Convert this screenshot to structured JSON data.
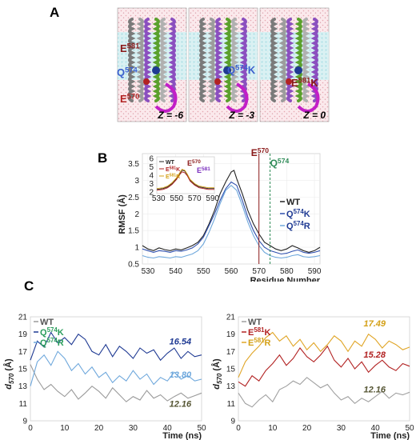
{
  "panel_a": {
    "letter": "A",
    "frames": [
      {
        "z_label": "Z = -6",
        "labels": [
          {
            "res": "E",
            "num": "581",
            "suffix": "",
            "color": "#8b1a1a"
          },
          {
            "res": "Q",
            "num": "574",
            "suffix": "",
            "color": "#3a5fcd"
          },
          {
            "res": "E",
            "num": "570",
            "suffix": "",
            "color": "#b22222"
          }
        ]
      },
      {
        "z_label": "Z = -3",
        "labels": [
          {
            "res": "Q",
            "num": "574",
            "suffix": "K",
            "color": "#3a5fcd"
          }
        ]
      },
      {
        "z_label": "Z = 0",
        "labels": [
          {
            "res": "E",
            "num": "581",
            "suffix": "K",
            "color": "#8b1a1a"
          }
        ]
      }
    ]
  },
  "panel_b": {
    "letter": "B",
    "chart_data": {
      "type": "line",
      "xlabel": "Residue Number",
      "ylabel": "RMSF (Å)",
      "xlim": [
        528,
        592
      ],
      "ylim": [
        0.5,
        3.8
      ],
      "xticks": [
        530,
        540,
        550,
        560,
        570,
        580,
        590
      ],
      "yticks": [
        0.5,
        1,
        1.5,
        2,
        2.5,
        3,
        3.5
      ],
      "markers": [
        {
          "label_res": "E",
          "label_num": "570",
          "x": 570,
          "color": "#8b1a1a"
        },
        {
          "label_res": "Q",
          "label_num": "574",
          "x": 574,
          "color": "#2e8b57"
        }
      ],
      "legend": [
        {
          "res": "WT",
          "num": "",
          "suffix": "",
          "color": "#222222"
        },
        {
          "res": "Q",
          "num": "574",
          "suffix": "K",
          "color": "#1f3a93"
        },
        {
          "res": "Q",
          "num": "574",
          "suffix": "R",
          "color": "#1f3a93"
        }
      ],
      "series": [
        {
          "name": "WT",
          "color": "#222222",
          "x": [
            528,
            530,
            532,
            534,
            536,
            538,
            540,
            542,
            544,
            546,
            548,
            550,
            552,
            554,
            556,
            558,
            560,
            561,
            562,
            564,
            566,
            568,
            570,
            572,
            574,
            576,
            578,
            580,
            582,
            584,
            586,
            588,
            590,
            592
          ],
          "y": [
            1.05,
            0.95,
            0.9,
            0.98,
            0.93,
            0.9,
            0.95,
            0.92,
            0.98,
            1.05,
            1.15,
            1.35,
            1.7,
            2.1,
            2.6,
            2.95,
            3.25,
            3.3,
            3.05,
            2.6,
            2.1,
            1.7,
            1.4,
            1.15,
            1.05,
            0.95,
            0.9,
            0.95,
            1.05,
            0.98,
            0.9,
            0.85,
            0.9,
            1.0
          ]
        },
        {
          "name": "Q574K",
          "color": "#2e4fae",
          "x": [
            528,
            530,
            532,
            534,
            536,
            538,
            540,
            542,
            544,
            546,
            548,
            550,
            552,
            554,
            556,
            558,
            560,
            562,
            564,
            566,
            568,
            570,
            572,
            574,
            576,
            578,
            580,
            582,
            584,
            586,
            588,
            590,
            592
          ],
          "y": [
            0.95,
            0.9,
            0.85,
            0.9,
            0.88,
            0.85,
            0.9,
            0.88,
            0.92,
            0.98,
            1.1,
            1.3,
            1.65,
            2.0,
            2.4,
            2.75,
            2.95,
            2.85,
            2.4,
            1.9,
            1.5,
            1.2,
            1.0,
            0.9,
            0.85,
            0.8,
            0.82,
            0.88,
            0.92,
            0.85,
            0.82,
            0.85,
            0.9
          ]
        },
        {
          "name": "Q574R",
          "color": "#6fa8dc",
          "x": [
            528,
            530,
            532,
            534,
            536,
            538,
            540,
            542,
            544,
            546,
            548,
            550,
            552,
            554,
            556,
            558,
            560,
            562,
            564,
            566,
            568,
            570,
            572,
            574,
            576,
            578,
            580,
            582,
            584,
            586,
            588,
            590,
            592
          ],
          "y": [
            0.75,
            0.7,
            0.68,
            0.72,
            0.7,
            0.68,
            0.72,
            0.7,
            0.75,
            0.8,
            0.9,
            1.1,
            1.45,
            1.85,
            2.3,
            2.7,
            2.85,
            2.7,
            2.25,
            1.75,
            1.35,
            1.05,
            0.85,
            0.75,
            0.7,
            0.68,
            0.7,
            0.75,
            0.78,
            0.72,
            0.7,
            0.72,
            0.75
          ]
        }
      ]
    },
    "inset": {
      "xticks": [
        530,
        550,
        570,
        590
      ],
      "yticks": [
        2,
        3,
        4,
        5,
        6
      ],
      "xlim": [
        528,
        592
      ],
      "ylim": [
        1.8,
        6.2
      ],
      "markers": [
        {
          "label_res": "E",
          "label_num": "570",
          "color": "#8b1a1a"
        },
        {
          "label_res": "E",
          "label_num": "581",
          "color": "#7b2fbe"
        }
      ],
      "legend": [
        {
          "res": "WT",
          "num": "",
          "suffix": "",
          "color": "#222222"
        },
        {
          "res": "E",
          "num": "581",
          "suffix": "K",
          "color": "#b22222"
        },
        {
          "res": "E",
          "num": "581",
          "suffix": "R",
          "color": "#d4a017"
        }
      ],
      "series": [
        {
          "name": "WT",
          "color": "#222222",
          "x": [
            528,
            535,
            540,
            545,
            550,
            553,
            556,
            559,
            562,
            565,
            570,
            575,
            580,
            585,
            592
          ],
          "y": [
            2.3,
            2.4,
            2.6,
            3.0,
            3.6,
            4.1,
            4.6,
            4.5,
            4.0,
            3.4,
            2.9,
            2.6,
            2.5,
            2.4,
            2.4
          ]
        },
        {
          "name": "E581K",
          "color": "#b22222",
          "x": [
            528,
            535,
            540,
            545,
            550,
            553,
            556,
            559,
            562,
            565,
            570,
            575,
            580,
            585,
            592
          ],
          "y": [
            2.2,
            2.3,
            2.5,
            2.9,
            3.5,
            4.0,
            4.4,
            4.3,
            3.9,
            3.3,
            2.8,
            2.5,
            2.4,
            2.3,
            2.3
          ]
        },
        {
          "name": "E581R",
          "color": "#d4a017",
          "x": [
            528,
            535,
            540,
            545,
            550,
            553,
            556,
            559,
            562,
            565,
            570,
            575,
            580,
            585,
            592
          ],
          "y": [
            2.4,
            2.5,
            2.7,
            3.1,
            3.7,
            4.2,
            4.7,
            4.6,
            4.1,
            3.5,
            3.0,
            2.7,
            2.6,
            2.5,
            2.5
          ]
        }
      ]
    }
  },
  "panel_c": {
    "letter": "C",
    "charts": [
      {
        "type": "line",
        "ylabel_main": "d",
        "ylabel_sub": "570",
        "ylabel_unit": " (Å)",
        "xlabel": "Time (ns)",
        "xlim": [
          0,
          50
        ],
        "ylim": [
          9,
          21
        ],
        "xticks": [
          0,
          10,
          20,
          30,
          40,
          50
        ],
        "yticks": [
          9,
          11,
          13,
          15,
          17,
          19,
          21
        ],
        "legend": [
          {
            "res": "WT",
            "num": "",
            "suffix": "",
            "color": "#555555"
          },
          {
            "res": "Q",
            "num": "574",
            "suffix": "K",
            "color": "#2a9d5c"
          },
          {
            "res": "Q",
            "num": "574",
            "suffix": "R",
            "color": "#2a9d5c"
          }
        ],
        "value_labels": [
          {
            "text": "16.54",
            "x": 47,
            "y": 17.8,
            "color": "#1f3a93"
          },
          {
            "text": "13.80",
            "x": 47,
            "y": 14.0,
            "color": "#6fa8dc"
          },
          {
            "text": "12.16",
            "x": 47,
            "y": 10.6,
            "color": "#555533"
          }
        ],
        "series": [
          {
            "name": "WT",
            "color": "#9a9a9a",
            "x": [
              0,
              2,
              4,
              6,
              8,
              10,
              12,
              14,
              16,
              18,
              20,
              22,
              24,
              26,
              28,
              30,
              32,
              34,
              36,
              38,
              40,
              42,
              44,
              46,
              48,
              50
            ],
            "y": [
              15.5,
              13.8,
              12.6,
              13.2,
              12.4,
              11.8,
              12.6,
              11.5,
              12.2,
              13.0,
              12.4,
              11.6,
              12.8,
              12.0,
              11.2,
              11.8,
              11.4,
              12.5,
              11.6,
              12.0,
              11.3,
              11.8,
              12.2,
              11.6,
              11.9,
              12.2
            ]
          },
          {
            "name": "Q574K",
            "color": "#1f3a93",
            "x": [
              0,
              2,
              4,
              6,
              8,
              10,
              12,
              14,
              16,
              18,
              20,
              22,
              24,
              26,
              28,
              30,
              32,
              34,
              36,
              38,
              40,
              42,
              44,
              46,
              48,
              50
            ],
            "y": [
              16.0,
              18.2,
              17.5,
              19.2,
              18.0,
              18.6,
              17.8,
              19.0,
              18.4,
              17.0,
              16.6,
              17.8,
              16.4,
              17.6,
              17.0,
              16.2,
              17.4,
              16.8,
              17.2,
              16.0,
              16.8,
              17.4,
              16.2,
              17.0,
              16.4,
              16.6
            ]
          },
          {
            "name": "Q574R",
            "color": "#6fa8dc",
            "x": [
              0,
              2,
              4,
              6,
              8,
              10,
              12,
              14,
              16,
              18,
              20,
              22,
              24,
              26,
              28,
              30,
              32,
              34,
              36,
              38,
              40,
              42,
              44,
              46,
              48,
              50
            ],
            "y": [
              13.0,
              15.8,
              16.6,
              15.4,
              17.0,
              16.2,
              14.8,
              15.6,
              14.4,
              15.2,
              14.0,
              14.6,
              13.4,
              14.2,
              13.6,
              14.8,
              13.8,
              14.4,
              13.2,
              14.0,
              13.6,
              14.6,
              13.8,
              14.2,
              13.6,
              13.8
            ]
          }
        ]
      },
      {
        "type": "line",
        "ylabel_main": "d",
        "ylabel_sub": "570",
        "ylabel_unit": " (Å)",
        "xlabel": "Time (ns)",
        "xlim": [
          0,
          50
        ],
        "ylim": [
          9,
          21
        ],
        "xticks": [
          0,
          10,
          20,
          30,
          40,
          50
        ],
        "yticks": [
          9,
          11,
          13,
          15,
          17,
          19,
          21
        ],
        "legend": [
          {
            "res": "WT",
            "num": "",
            "suffix": "",
            "color": "#555555"
          },
          {
            "res": "E",
            "num": "581",
            "suffix": "K",
            "color": "#b22222"
          },
          {
            "res": "E",
            "num": "581",
            "suffix": "R",
            "color": "#d4a017"
          }
        ],
        "value_labels": [
          {
            "text": "17.49",
            "x": 43,
            "y": 19.9,
            "color": "#d4a017"
          },
          {
            "text": "15.28",
            "x": 43,
            "y": 16.3,
            "color": "#b22222"
          },
          {
            "text": "12.16",
            "x": 43,
            "y": 12.3,
            "color": "#555533"
          }
        ],
        "series": [
          {
            "name": "WT",
            "color": "#a0a0a0",
            "x": [
              0,
              2,
              4,
              6,
              8,
              10,
              12,
              14,
              16,
              18,
              20,
              22,
              24,
              26,
              28,
              30,
              32,
              34,
              36,
              38,
              40,
              42,
              44,
              46,
              48,
              50
            ],
            "y": [
              12.2,
              11.0,
              10.6,
              11.4,
              12.0,
              11.2,
              12.6,
              13.0,
              13.6,
              13.2,
              14.0,
              13.4,
              12.8,
              13.2,
              12.2,
              11.4,
              11.8,
              11.0,
              11.6,
              11.2,
              11.8,
              12.4,
              11.6,
              12.2,
              12.0,
              12.3
            ]
          },
          {
            "name": "E581K",
            "color": "#b22222",
            "x": [
              0,
              2,
              4,
              6,
              8,
              10,
              12,
              14,
              16,
              18,
              20,
              22,
              24,
              26,
              28,
              30,
              32,
              34,
              36,
              38,
              40,
              42,
              44,
              46,
              48,
              50
            ],
            "y": [
              13.5,
              13.0,
              14.2,
              13.6,
              14.8,
              15.6,
              16.6,
              15.4,
              16.2,
              17.4,
              16.4,
              15.8,
              16.6,
              17.6,
              16.0,
              15.2,
              16.2,
              15.0,
              15.8,
              14.6,
              15.4,
              16.0,
              15.2,
              14.8,
              15.6,
              15.3
            ]
          },
          {
            "name": "E581R",
            "color": "#e0a526",
            "x": [
              0,
              2,
              4,
              6,
              8,
              10,
              12,
              14,
              16,
              18,
              20,
              22,
              24,
              26,
              28,
              30,
              32,
              34,
              36,
              38,
              40,
              42,
              44,
              46,
              48,
              50
            ],
            "y": [
              14.0,
              15.8,
              16.8,
              17.6,
              18.6,
              19.2,
              18.2,
              18.8,
              17.6,
              18.4,
              17.2,
              18.0,
              17.0,
              17.8,
              18.8,
              18.2,
              17.0,
              18.2,
              17.6,
              19.0,
              18.4,
              17.4,
              18.2,
              17.8,
              17.2,
              17.5
            ]
          }
        ]
      }
    ]
  }
}
